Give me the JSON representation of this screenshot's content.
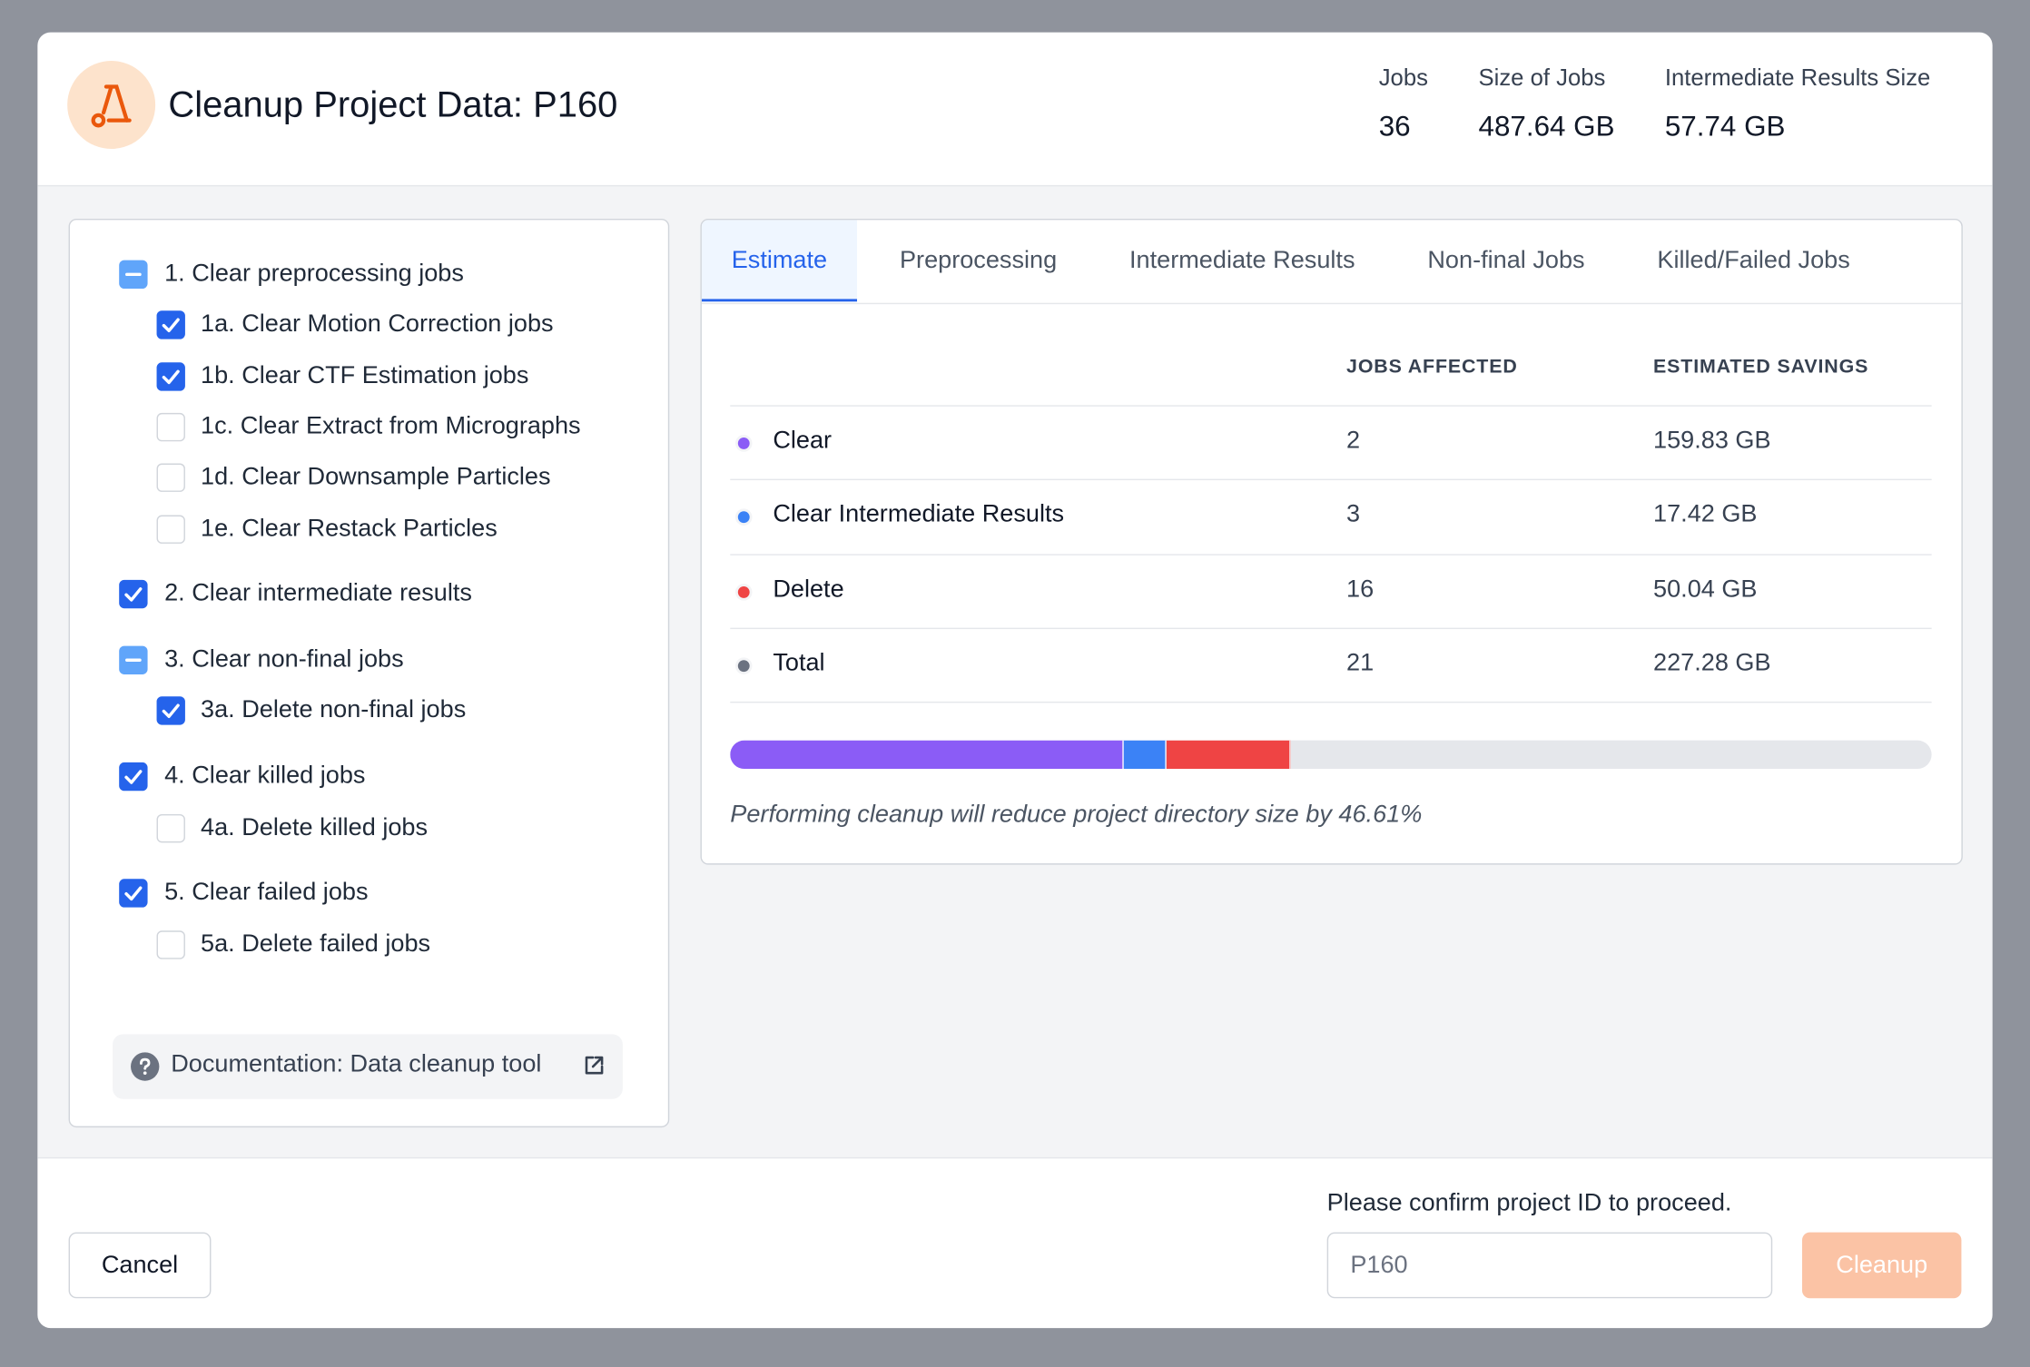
{
  "header": {
    "title": "Cleanup Project Data: P160",
    "stats": [
      {
        "label": "Jobs",
        "value": 36
      },
      {
        "label": "Size of Jobs",
        "value": {
          "value": 487.64,
          "label": "487.64 GB"
        }
      },
      {
        "label": "Intermediate Results Size",
        "value": "57.74 GB"
      }
    ]
  },
  "options": [
    {
      "label": "1. Clear preprocessing jobs",
      "state": "indeterminate",
      "children": [
        {
          "label": "1a. Clear Motion Correction jobs",
          "state": "checked"
        },
        {
          "label": "1b. Clear CTF Estimation jobs",
          "state": "checked"
        },
        {
          "label": "1c. Clear Extract from Micrographs",
          "state": "unchecked"
        },
        {
          "label": "1d. Clear Downsample Particles",
          "state": "unchecked"
        },
        {
          "label": "1e. Clear Restack Particles",
          "state": "unchecked"
        }
      ]
    },
    {
      "label": "2. Clear intermediate results",
      "state": "checked",
      "children": []
    },
    {
      "label": "3. Clear non-final jobs",
      "state": "indeterminate",
      "children": [
        {
          "label": "3a. Delete non-final jobs",
          "state": "checked"
        }
      ]
    },
    {
      "label": "4. Clear killed jobs",
      "state": "checked",
      "children": [
        {
          "label": "4a. Delete killed jobs",
          "state": "unchecked"
        }
      ]
    },
    {
      "label": "5. Clear failed jobs",
      "state": "checked",
      "children": [
        {
          "label": "5a. Delete failed jobs",
          "state": "unchecked"
        }
      ]
    }
  ],
  "documentation": "Documentation: Data cleanup tool",
  "tabs": {
    "items": [
      "Estimate",
      "Preprocessing",
      "Intermediate Results",
      "Non-final Jobs",
      "Killed/Failed Jobs"
    ],
    "active": 0
  },
  "table": {
    "columns": [
      "JOBS AFFECTED",
      "ESTIMATED SAVINGS"
    ],
    "rows": [
      {
        "name": "Clear",
        "color": "#8b5cf6",
        "jobs": 2,
        "savings": {
          "value": 159.83,
          "label": "159.83 GB"
        }
      },
      {
        "name": "Clear Intermediate Results",
        "color": "#3b82f6",
        "jobs": 3,
        "savings": {
          "value": 17.42,
          "label": "17.42 GB"
        }
      },
      {
        "name": "Delete",
        "color": "#ef4444",
        "jobs": 16,
        "savings": {
          "value": 50.04,
          "label": "50.04 GB"
        }
      }
    ],
    "total": {
      "name": "Total",
      "color": "#6b7280",
      "jobs": 21,
      "savings": {
        "value": 227.28,
        "label": "227.28 GB"
      }
    }
  },
  "note": "Performing cleanup will reduce project directory size by 46.61%",
  "footer": {
    "cancel": "Cancel",
    "confirm_label": "Please confirm project ID to proceed.",
    "input_value": "P160",
    "submit": "Cleanup"
  }
}
